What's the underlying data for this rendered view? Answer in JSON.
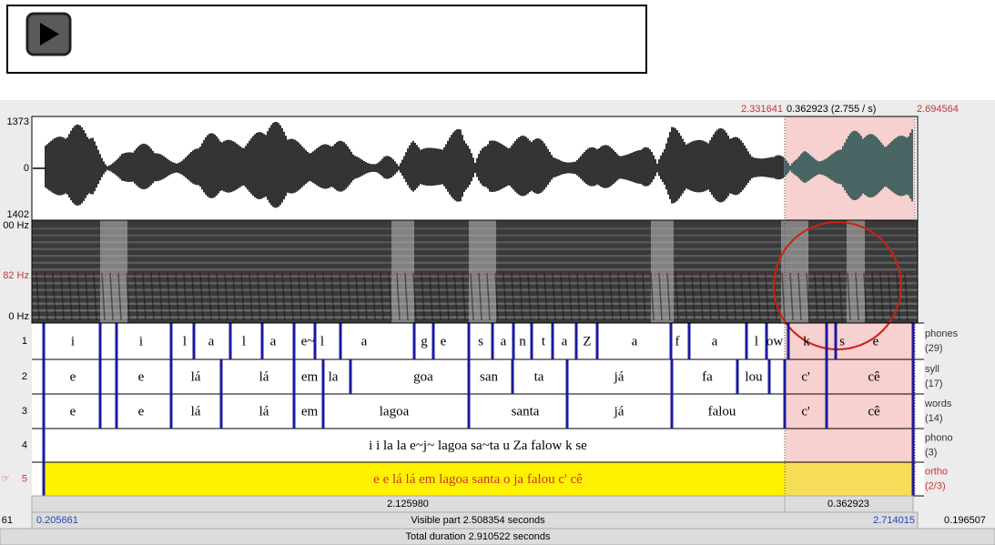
{
  "header": {
    "selection_start": "2.331641",
    "selection_info": "0.362923 (2.755 / s)",
    "selection_end": "2.694564"
  },
  "waveform": {
    "top_label": "1373",
    "zero_label": "0",
    "bottom_label": "1402"
  },
  "spectrogram": {
    "top_label": "00 Hz",
    "cursor_label": "82 Hz",
    "bottom_label": "0 Hz"
  },
  "tiers": [
    {
      "number": "1",
      "name": "phones",
      "count": "(29)",
      "labels": [
        "i",
        "i",
        "l",
        "a",
        "l",
        "a",
        "e~",
        "l",
        "a",
        "g",
        "e",
        "s",
        "a",
        "n",
        "t",
        "a",
        "Z",
        "a",
        "f",
        "a",
        "l",
        "ow",
        "k",
        "s",
        "e"
      ]
    },
    {
      "number": "2",
      "name": "syll",
      "count": "(17)",
      "labels": [
        "e",
        "e",
        "lá",
        "lá",
        "em",
        "la",
        "goa",
        "san",
        "ta",
        "já",
        "fa",
        "lou",
        "c'",
        "cê"
      ]
    },
    {
      "number": "3",
      "name": "words",
      "count": "(14)",
      "labels": [
        "e",
        "e",
        "lá",
        "lá",
        "em",
        "lagoa",
        "santa",
        "já",
        "falou",
        "c'",
        "cê"
      ]
    },
    {
      "number": "4",
      "name": "phono",
      "count": "(3)",
      "labels": [
        "i i la la e~j~ lagoa sa~ta u Za falow k se"
      ]
    },
    {
      "number": "5",
      "name": "ortho",
      "count": "(2/3)",
      "labels": [
        "e e lá lá em lagoa santa o ja falou c' cê"
      ]
    }
  ],
  "footer": {
    "visible_duration": "2.125980",
    "selection_duration": "0.362923",
    "left_edge": "61",
    "window_start": "0.205661",
    "visible_part": "Visible part 2.508354 seconds",
    "window_end": "2.714015",
    "right_remainder": "0.196507",
    "total_duration": "Total duration 2.910522 seconds"
  }
}
